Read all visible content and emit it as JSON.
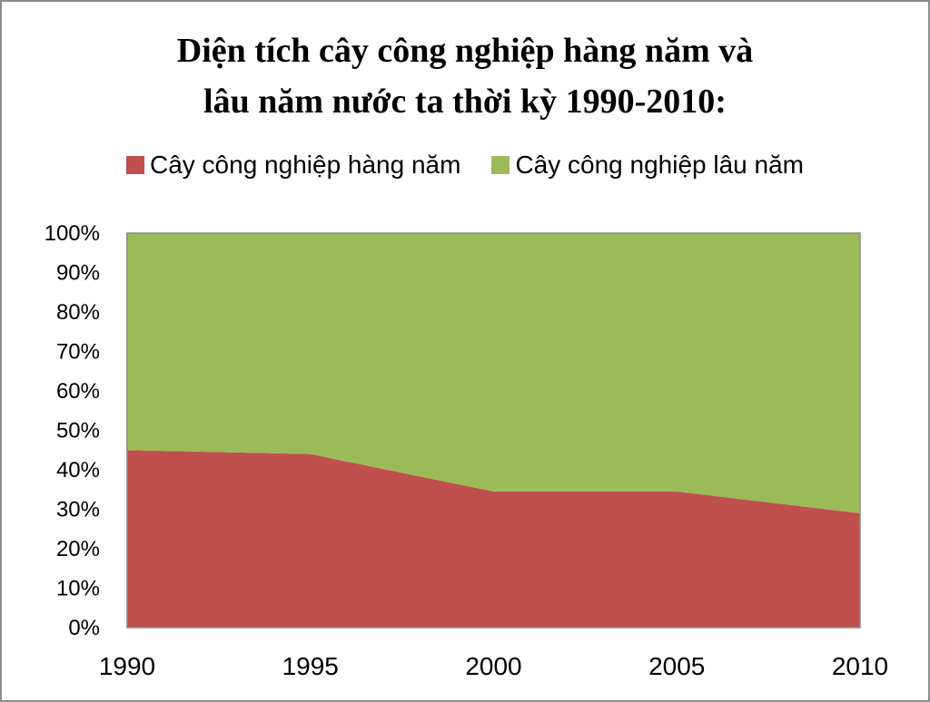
{
  "chart_data": {
    "type": "area",
    "stacked": true,
    "percent": true,
    "title_lines": [
      "Diện tích cây công nghiệp hàng năm và",
      "lâu năm nước ta thời kỳ 1990-2010:"
    ],
    "x": [
      "1990",
      "1995",
      "2000",
      "2005",
      "2010"
    ],
    "series": [
      {
        "name": "Cây công nghiệp hàng năm",
        "color": "#C0504D",
        "values": [
          45,
          44,
          34.5,
          34.5,
          29
        ]
      },
      {
        "name": "Cây công nghiệp lâu năm",
        "color": "#9BBB59",
        "values": [
          55,
          56,
          65.5,
          65.5,
          71
        ]
      }
    ],
    "ylim": [
      0,
      100
    ],
    "y_ticks": [
      "0%",
      "10%",
      "20%",
      "30%",
      "40%",
      "50%",
      "60%",
      "70%",
      "80%",
      "90%",
      "100%"
    ],
    "legend_position": "top",
    "grid": false
  }
}
